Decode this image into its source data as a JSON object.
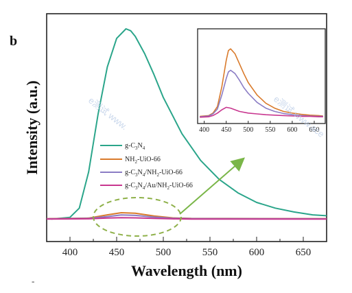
{
  "panel_label": "b",
  "watermark": [
    "e测试 www.",
    "e测试 www.ace"
  ],
  "chart_data": [
    {
      "type": "line",
      "title": "",
      "xlabel": "Wavelength (nm)",
      "ylabel": "Intensity (a.u.)",
      "xlim": [
        375,
        675
      ],
      "ylim": [
        0,
        100
      ],
      "xticks": [
        400,
        450,
        500,
        550,
        600,
        650
      ],
      "grid": false,
      "legend_position": "center-left",
      "series": [
        {
          "name": "g-C3N4",
          "color": "#2aa58a",
          "x": [
            380,
            400,
            410,
            420,
            430,
            440,
            450,
            460,
            465,
            470,
            480,
            490,
            500,
            520,
            540,
            560,
            580,
            600,
            620,
            640,
            660,
            675
          ],
          "y": [
            0.3,
            1.2,
            6,
            25,
            55,
            80,
            95,
            100,
            99,
            96,
            87,
            76,
            64,
            45,
            31,
            21,
            14,
            9,
            6,
            4,
            2.5,
            2
          ]
        },
        {
          "name": "NH2-UiO-66",
          "color": "#d97a2b",
          "x": [
            375,
            420,
            440,
            455,
            470,
            490,
            510,
            530,
            675
          ],
          "y": [
            0.5,
            0.8,
            2.5,
            3.6,
            3.3,
            1.9,
            0.9,
            0.6,
            0.5
          ]
        },
        {
          "name": "g-C3N4/NH2-UiO-66",
          "color": "#8a7cc4",
          "x": [
            375,
            420,
            440,
            455,
            470,
            490,
            510,
            530,
            675
          ],
          "y": [
            0.4,
            0.6,
            1.6,
            2.4,
            2.2,
            1.3,
            0.7,
            0.5,
            0.4
          ]
        },
        {
          "name": "g-C3N4/Au/NH2-UiO-66",
          "color": "#c8368f",
          "x": [
            375,
            420,
            440,
            455,
            470,
            490,
            510,
            530,
            675
          ],
          "y": [
            0.3,
            0.4,
            0.8,
            1.0,
            0.9,
            0.6,
            0.4,
            0.3,
            0.3
          ]
        }
      ]
    },
    {
      "type": "line",
      "title": "",
      "xlabel": "",
      "ylabel": "",
      "xlim": [
        385,
        675
      ],
      "ylim": [
        0,
        100
      ],
      "xticks": [
        400,
        450,
        500,
        550,
        600,
        650
      ],
      "grid": false,
      "series": [
        {
          "name": "NH2-UiO-66",
          "color": "#d97a2b",
          "x": [
            390,
            410,
            420,
            430,
            440,
            450,
            455,
            460,
            470,
            480,
            490,
            500,
            520,
            540,
            560,
            580,
            600,
            620,
            640,
            660,
            670
          ],
          "y": [
            2,
            3,
            6,
            14,
            38,
            70,
            82,
            84,
            78,
            66,
            54,
            43,
            28,
            18,
            12,
            8,
            6,
            4.5,
            3.5,
            3,
            2.5
          ]
        },
        {
          "name": "g-C3N4/NH2-UiO-66",
          "color": "#8a7cc4",
          "x": [
            390,
            410,
            420,
            430,
            440,
            450,
            455,
            460,
            470,
            480,
            490,
            500,
            520,
            540,
            560,
            580,
            600,
            620,
            640,
            660,
            670
          ],
          "y": [
            1.5,
            2.5,
            5,
            11,
            28,
            48,
            56,
            58,
            54,
            46,
            37,
            30,
            19,
            12,
            8,
            5.5,
            4,
            3,
            2.5,
            2,
            2
          ]
        },
        {
          "name": "g-C3N4/Au/NH2-UiO-66",
          "color": "#c8368f",
          "x": [
            390,
            410,
            420,
            430,
            440,
            450,
            460,
            470,
            480,
            500,
            520,
            540,
            560,
            580,
            600,
            620,
            640,
            660,
            670
          ],
          "y": [
            1,
            1.5,
            3,
            6,
            10,
            13,
            12,
            10,
            8,
            6,
            5,
            4,
            3.5,
            3,
            2.5,
            2,
            2,
            1.5,
            1.5
          ]
        }
      ]
    }
  ],
  "legend_labels": [
    "g-C3N4",
    "NH2-UiO-66",
    "g-C3N4/NH2-UiO-66",
    "g-C3N4/Au/NH2-UiO-66"
  ],
  "arrow_color": "#7ab648",
  "ellipse_color": "#8fb14a"
}
